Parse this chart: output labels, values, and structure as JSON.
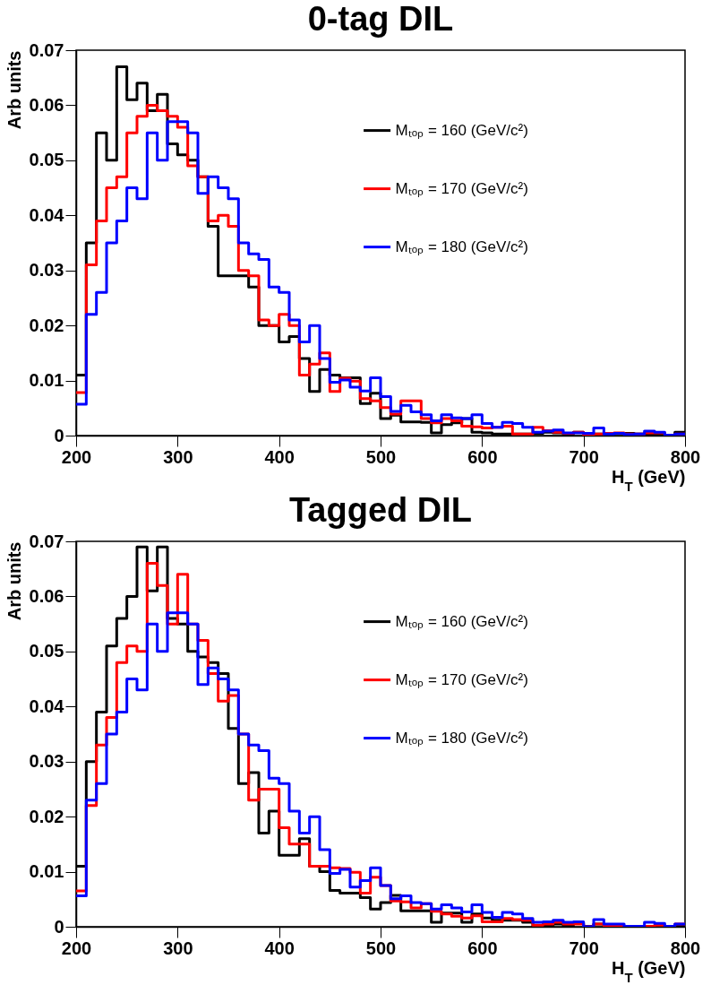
{
  "chart_data": [
    {
      "type": "histogram",
      "title": "0-tag DIL",
      "xlabel": "H$_{T}$ (GeV)",
      "ylabel": "Arb units",
      "bins": [
        200,
        210,
        220,
        230,
        240,
        250,
        260,
        270,
        280,
        290,
        300,
        310,
        320,
        330,
        340,
        350,
        360,
        370,
        380,
        390,
        400,
        410,
        420,
        430,
        440,
        450,
        460,
        470,
        480,
        490,
        500,
        510,
        520,
        530,
        540,
        550,
        560,
        570,
        580,
        590,
        600,
        610,
        620,
        630,
        640,
        650,
        660,
        670,
        680,
        690,
        700,
        710,
        720,
        730,
        740,
        750,
        760,
        770,
        780,
        790,
        800
      ],
      "xlim": [
        200,
        800
      ],
      "xticks": [
        200,
        300,
        400,
        500,
        600,
        700,
        800
      ],
      "ylim": [
        0,
        0.07
      ],
      "yticks": [
        0,
        0.01,
        0.02,
        0.03,
        0.04,
        0.05,
        0.06,
        0.07
      ],
      "grid": false,
      "legend": "top right",
      "series": [
        {
          "name": "Mₜₒₚ = 160 (GeV/c²)",
          "color": "#000000",
          "values": [
            0.011,
            0.035,
            0.055,
            0.05,
            0.067,
            0.061,
            0.064,
            0.059,
            0.062,
            0.053,
            0.051,
            0.05,
            0.047,
            0.038,
            0.029,
            0.029,
            0.029,
            0.027,
            0.02,
            0.02,
            0.017,
            0.018,
            0.014,
            0.008,
            0.012,
            0.011,
            0.0105,
            0.0105,
            0.0058,
            0.0077,
            0.0031,
            0.0037,
            0.0025,
            0.0025,
            0.0024,
            0.0005,
            0.002,
            0.0023,
            0.0031,
            0.0006,
            0.0005,
            0.0003,
            0.0003,
            0.0003,
            0.0003,
            0.0004,
            0.0006,
            0.0005,
            0.0003,
            0.0006,
            0.0004,
            0.0003,
            0.0003,
            0.0004,
            0.0004,
            0.0003,
            0.0003,
            0.0003,
            0.0001,
            0.0006
          ]
        },
        {
          "name": "Mₜₒₚ = 170 (GeV/c²)",
          "color": "#ff0000",
          "values": [
            0.0078,
            0.031,
            0.039,
            0.045,
            0.047,
            0.055,
            0.058,
            0.06,
            0.059,
            0.058,
            0.056,
            0.049,
            0.047,
            0.039,
            0.04,
            0.038,
            0.03,
            0.029,
            0.021,
            0.02,
            0.022,
            0.02,
            0.011,
            0.013,
            0.015,
            0.008,
            0.0104,
            0.0099,
            0.0067,
            0.0063,
            0.0051,
            0.0039,
            0.0063,
            0.0063,
            0.0031,
            0.0023,
            0.0031,
            0.0027,
            0.0017,
            0.0016,
            0.0014,
            0.0015,
            0.0017,
            0.0003,
            0.0003,
            0.0015,
            0.0009,
            0.0006,
            0.0004,
            0.0006,
            0.0001,
            0.0003,
            0.0004,
            0.0005,
            0.0003,
            0.0003,
            0.0005,
            0.0005,
            0.0001,
            0.0003
          ]
        },
        {
          "name": "Mₜₒₚ = 180 (GeV/c²)",
          "color": "#0000ff",
          "values": [
            0.0057,
            0.022,
            0.026,
            0.035,
            0.039,
            0.045,
            0.043,
            0.055,
            0.05,
            0.057,
            0.057,
            0.055,
            0.044,
            0.047,
            0.045,
            0.043,
            0.035,
            0.033,
            0.032,
            0.027,
            0.026,
            0.021,
            0.017,
            0.02,
            0.014,
            0.0097,
            0.0101,
            0.0088,
            0.0081,
            0.0105,
            0.0071,
            0.0044,
            0.0055,
            0.0043,
            0.0038,
            0.0027,
            0.0038,
            0.0032,
            0.0031,
            0.0038,
            0.0022,
            0.0015,
            0.0024,
            0.0022,
            0.0015,
            0.0006,
            0.0008,
            0.001,
            0.0005,
            0.0005,
            0.0004,
            0.0014,
            0.0003,
            0.0004,
            0.0002,
            0.0003,
            0.0008,
            0.0006,
            0.0001,
            0.0003
          ]
        }
      ]
    },
    {
      "type": "histogram",
      "title": "Tagged DIL",
      "xlabel": "H$_{T}$ (GeV)",
      "ylabel": "Arb units",
      "bins": [
        200,
        210,
        220,
        230,
        240,
        250,
        260,
        270,
        280,
        290,
        300,
        310,
        320,
        330,
        340,
        350,
        360,
        370,
        380,
        390,
        400,
        410,
        420,
        430,
        440,
        450,
        460,
        470,
        480,
        490,
        500,
        510,
        520,
        530,
        540,
        550,
        560,
        570,
        580,
        590,
        600,
        610,
        620,
        630,
        640,
        650,
        660,
        670,
        680,
        690,
        700,
        710,
        720,
        730,
        740,
        750,
        760,
        770,
        780,
        790,
        800
      ],
      "xlim": [
        200,
        800
      ],
      "xticks": [
        200,
        300,
        400,
        500,
        600,
        700,
        800
      ],
      "ylim": [
        0,
        0.07
      ],
      "yticks": [
        0,
        0.01,
        0.02,
        0.03,
        0.04,
        0.05,
        0.06,
        0.07
      ],
      "grid": false,
      "legend": "top right",
      "series": [
        {
          "name": "Mₜₒₚ = 160 (GeV/c²)",
          "color": "#000000",
          "values": [
            0.011,
            0.03,
            0.039,
            0.051,
            0.056,
            0.06,
            0.069,
            0.061,
            0.069,
            0.056,
            0.055,
            0.05,
            0.049,
            0.048,
            0.046,
            0.036,
            0.026,
            0.028,
            0.017,
            0.021,
            0.013,
            0.013,
            0.016,
            0.011,
            0.01,
            0.0066,
            0.0061,
            0.0061,
            0.0053,
            0.0032,
            0.0044,
            0.0057,
            0.0029,
            0.0029,
            0.0029,
            0.0008,
            0.0025,
            0.0025,
            0.0008,
            0.0023,
            0.0016,
            0.0012,
            0.0012,
            0.0012,
            0.0008,
            0.0001,
            0.0001,
            0.0005,
            0.0002,
            0.0007,
            0.0001,
            0.0005,
            0.0001,
            0.0002,
            0.0001,
            0.0001,
            0.0001,
            0.0001,
            0.0001,
            0.0001
          ]
        },
        {
          "name": "Mₜₒₚ = 170 (GeV/c²)",
          "color": "#ff0000",
          "values": [
            0.0065,
            0.022,
            0.033,
            0.038,
            0.048,
            0.051,
            0.05,
            0.066,
            0.062,
            0.055,
            0.064,
            0.055,
            0.052,
            0.046,
            0.041,
            0.042,
            0.035,
            0.023,
            0.025,
            0.025,
            0.018,
            0.015,
            0.015,
            0.011,
            0.011,
            0.0107,
            0.0106,
            0.0099,
            0.0061,
            0.009,
            0.0075,
            0.0047,
            0.0045,
            0.0034,
            0.0042,
            0.0028,
            0.0023,
            0.0019,
            0.0016,
            0.002,
            0.0009,
            0.0009,
            0.0015,
            0.0013,
            0.0012,
            0.0003,
            0.0005,
            0.0008,
            0.0005,
            0.0005,
            0,
            0.0005,
            0.0002,
            0.0001,
            0.0001,
            0.0001,
            0.0001,
            0.0003,
            0.0001,
            0.0005
          ]
        },
        {
          "name": "Mₜₒₚ = 180 (GeV/c²)",
          "color": "#0000ff",
          "values": [
            0.0056,
            0.023,
            0.026,
            0.035,
            0.039,
            0.045,
            0.043,
            0.055,
            0.05,
            0.057,
            0.057,
            0.055,
            0.044,
            0.047,
            0.045,
            0.043,
            0.035,
            0.033,
            0.032,
            0.027,
            0.026,
            0.021,
            0.017,
            0.02,
            0.014,
            0.0097,
            0.0104,
            0.0072,
            0.0084,
            0.0107,
            0.0075,
            0.0051,
            0.0056,
            0.0044,
            0.0042,
            0.0032,
            0.004,
            0.0034,
            0.0027,
            0.004,
            0.0026,
            0.0017,
            0.0026,
            0.0023,
            0.0015,
            0.0008,
            0.0009,
            0.0012,
            0.0008,
            0.0009,
            0,
            0.0013,
            0.0005,
            0.0005,
            0.0001,
            0.0001,
            0.0008,
            0.0006,
            0.0001,
            0.0005
          ]
        }
      ]
    }
  ]
}
